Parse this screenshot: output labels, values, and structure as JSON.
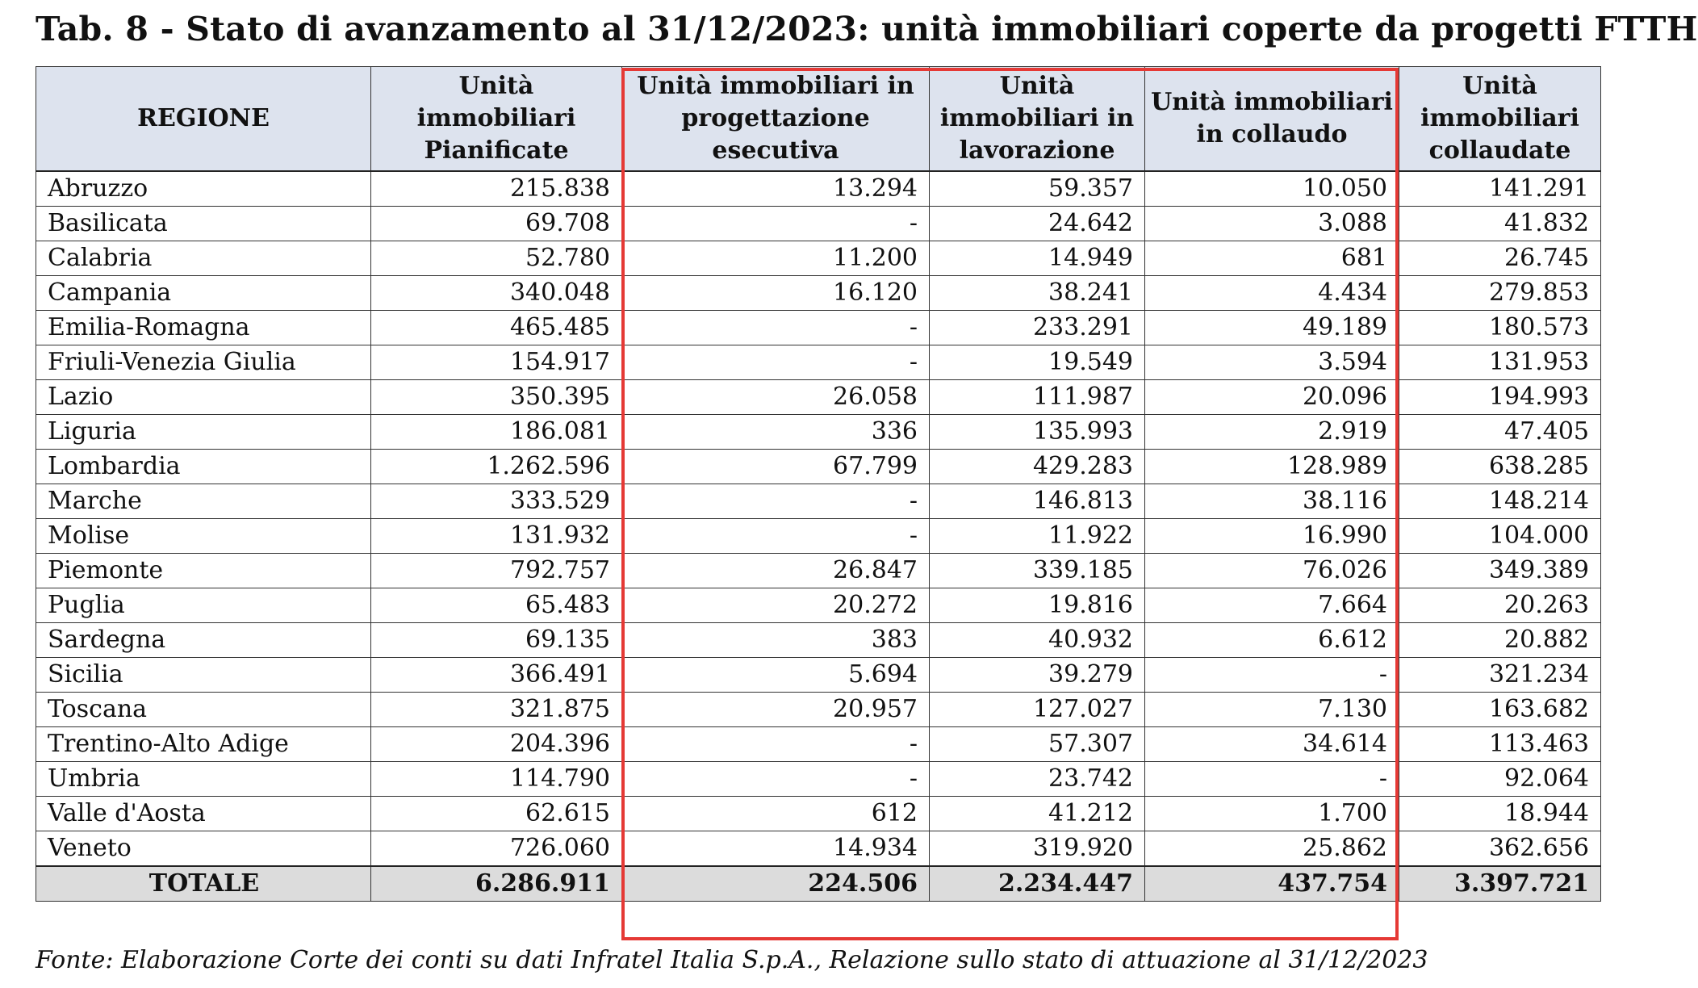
{
  "title": "Tab. 8 - Stato di avanzamento al 31/12/2023: unità immobiliari coperte da progetti FTTH",
  "headers": [
    "REGIONE",
    "Unità immobiliari Pianificate",
    "Unità immobiliari in progettazione esecutiva",
    "Unità immobiliari in lavorazione",
    "Unità immobiliari in collaudo",
    "Unità immobiliari collaudate"
  ],
  "rows": [
    [
      "Abruzzo",
      "215.838",
      "13.294",
      "59.357",
      "10.050",
      "141.291"
    ],
    [
      "Basilicata",
      "69.708",
      "-",
      "24.642",
      "3.088",
      "41.832"
    ],
    [
      "Calabria",
      "52.780",
      "11.200",
      "14.949",
      "681",
      "26.745"
    ],
    [
      "Campania",
      "340.048",
      "16.120",
      "38.241",
      "4.434",
      "279.853"
    ],
    [
      "Emilia-Romagna",
      "465.485",
      "-",
      "233.291",
      "49.189",
      "180.573"
    ],
    [
      "Friuli-Venezia Giulia",
      "154.917",
      "-",
      "19.549",
      "3.594",
      "131.953"
    ],
    [
      "Lazio",
      "350.395",
      "26.058",
      "111.987",
      "20.096",
      "194.993"
    ],
    [
      "Liguria",
      "186.081",
      "336",
      "135.993",
      "2.919",
      "47.405"
    ],
    [
      "Lombardia",
      "1.262.596",
      "67.799",
      "429.283",
      "128.989",
      "638.285"
    ],
    [
      "Marche",
      "333.529",
      "-",
      "146.813",
      "38.116",
      "148.214"
    ],
    [
      "Molise",
      "131.932",
      "-",
      "11.922",
      "16.990",
      "104.000"
    ],
    [
      "Piemonte",
      "792.757",
      "26.847",
      "339.185",
      "76.026",
      "349.389"
    ],
    [
      "Puglia",
      "65.483",
      "20.272",
      "19.816",
      "7.664",
      "20.263"
    ],
    [
      "Sardegna",
      "69.135",
      "383",
      "40.932",
      "6.612",
      "20.882"
    ],
    [
      "Sicilia",
      "366.491",
      "5.694",
      "39.279",
      "-",
      "321.234"
    ],
    [
      "Toscana",
      "321.875",
      "20.957",
      "127.027",
      "7.130",
      "163.682"
    ],
    [
      "Trentino-Alto Adige",
      "204.396",
      "-",
      "57.307",
      "34.614",
      "113.463"
    ],
    [
      "Umbria",
      "114.790",
      "-",
      "23.742",
      "-",
      "92.064"
    ],
    [
      "Valle d'Aosta",
      "62.615",
      "612",
      "41.212",
      "1.700",
      "18.944"
    ],
    [
      "Veneto",
      "726.060",
      "14.934",
      "319.920",
      "25.862",
      "362.656"
    ]
  ],
  "total": [
    "TOTALE",
    "6.286.911",
    "224.506",
    "2.234.447",
    "437.754",
    "3.397.721"
  ],
  "highlight_color": "#e53935",
  "header_bg": "#dde3ee",
  "total_bg": "#dcdcdc",
  "source": "Fonte: Elaborazione Corte dei conti su dati Infratel Italia S.p.A., Relazione sullo stato di attuazione al 31/12/2023"
}
